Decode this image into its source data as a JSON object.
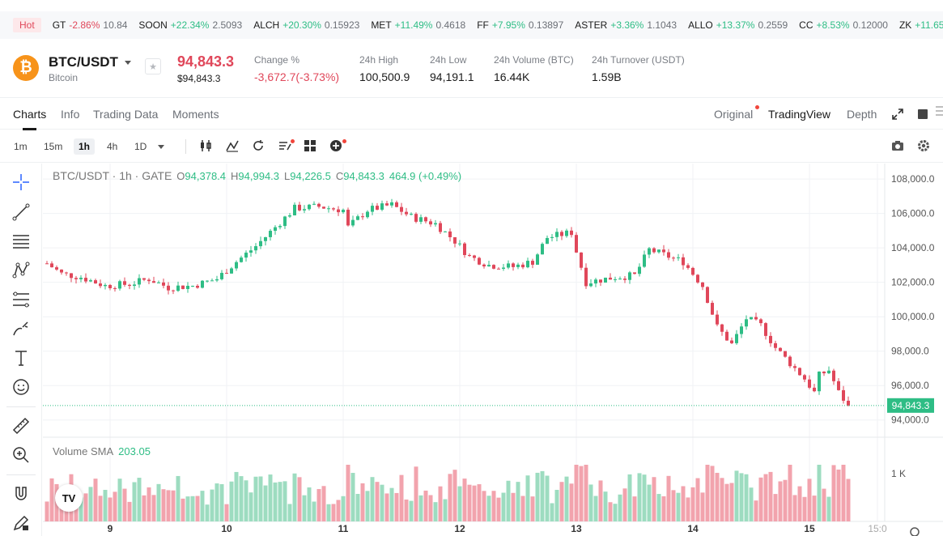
{
  "ticker": {
    "hot_label": "Hot",
    "items": [
      {
        "sym": "GT",
        "pct": "-2.86%",
        "price": "10.84",
        "neg": true
      },
      {
        "sym": "SOON",
        "pct": "+22.34%",
        "price": "2.5093",
        "neg": false
      },
      {
        "sym": "ALCH",
        "pct": "+20.30%",
        "price": "0.15923",
        "neg": false
      },
      {
        "sym": "MET",
        "pct": "+11.49%",
        "price": "0.4618",
        "neg": false
      },
      {
        "sym": "FF",
        "pct": "+7.95%",
        "price": "0.13897",
        "neg": false
      },
      {
        "sym": "ASTER",
        "pct": "+3.36%",
        "price": "1.1043",
        "neg": false
      },
      {
        "sym": "ALLO",
        "pct": "+13.37%",
        "price": "0.2559",
        "neg": false
      },
      {
        "sym": "CC",
        "pct": "+8.53%",
        "price": "0.12000",
        "neg": false
      },
      {
        "sym": "ZK",
        "pct": "+11.65",
        "price": "",
        "neg": false
      }
    ]
  },
  "header": {
    "coin_symbol": "₿",
    "pair": "BTC/USDT",
    "name": "Bitcoin",
    "star": "★",
    "last_price": "94,843.3",
    "last_price_usd": "$94,843.3",
    "stats": [
      {
        "label": "Change %",
        "value": "-3,672.7(-3.73%)",
        "red": true
      },
      {
        "label": "24h High",
        "value": "100,500.9",
        "red": false
      },
      {
        "label": "24h Low",
        "value": "94,191.1",
        "red": false
      },
      {
        "label": "24h Volume (BTC)",
        "value": "16.44K",
        "red": false
      },
      {
        "label": "24h Turnover (USDT)",
        "value": "1.59B",
        "red": false
      }
    ]
  },
  "tabs": {
    "left": [
      "Charts",
      "Info",
      "Trading Data",
      "Moments"
    ],
    "right": [
      "Original",
      "TradingView",
      "Depth"
    ]
  },
  "toolbar": {
    "intervals": [
      "1m",
      "15m",
      "1h",
      "4h",
      "1D"
    ],
    "active_interval": "1h"
  },
  "legend": {
    "title": "BTC/USDT · 1h · GATE",
    "o": "94,378.4",
    "h": "94,994.3",
    "l": "94,226.5",
    "c": "94,843.3",
    "change": "464.9 (+0.49%)",
    "o_label": "O",
    "h_label": "H",
    "l_label": "L",
    "c_label": "C"
  },
  "volume": {
    "label": "Volume SMA",
    "value": "203.05",
    "axis_label": "1 K"
  },
  "tv_logo": "TV",
  "colors": {
    "up": "#2ebd85",
    "down": "#e0475a",
    "up_vol": "#9ddcc0",
    "down_vol": "#f2a3ad",
    "grid": "#f0f2f5"
  },
  "chart_data": {
    "type": "candlestick",
    "title": "BTC/USDT · 1h · GATE",
    "ylim": [
      93000,
      108900
    ],
    "y_ticks": [
      "94,000.0",
      "96,000.0",
      "98,000.0",
      "100,000.0",
      "102,000.0",
      "104,000.0",
      "106,000.0",
      "108,000.0"
    ],
    "y_tick_values": [
      94000,
      96000,
      98000,
      100000,
      102000,
      104000,
      106000,
      108000
    ],
    "x_ticks": [
      "9",
      "10",
      "11",
      "12",
      "13",
      "14",
      "15",
      "15:0"
    ],
    "x_tick_hours": [
      0,
      24,
      48,
      72,
      96,
      120,
      144,
      158
    ],
    "last_price": 94843.3,
    "last_price_label": "94,843.3",
    "close_path": [
      [
        -13,
        103100
      ],
      [
        -10,
        102500
      ],
      [
        -6,
        102300
      ],
      [
        -1,
        101800
      ],
      [
        4,
        101900
      ],
      [
        8,
        102200
      ],
      [
        12,
        101700
      ],
      [
        17,
        101800
      ],
      [
        22,
        102200
      ],
      [
        26,
        103200
      ],
      [
        30,
        104100
      ],
      [
        34,
        105200
      ],
      [
        38,
        106300
      ],
      [
        43,
        106400
      ],
      [
        48,
        106200
      ],
      [
        49,
        105200
      ],
      [
        53,
        106200
      ],
      [
        58,
        106500
      ],
      [
        62,
        105800
      ],
      [
        67,
        105400
      ],
      [
        71,
        104400
      ],
      [
        74,
        103500
      ],
      [
        78,
        103000
      ],
      [
        83,
        102900
      ],
      [
        87,
        103200
      ],
      [
        90,
        104600
      ],
      [
        95,
        104900
      ],
      [
        96,
        103800
      ],
      [
        98,
        102000
      ],
      [
        104,
        102300
      ],
      [
        108,
        102400
      ],
      [
        111,
        103900
      ],
      [
        118,
        103200
      ],
      [
        122,
        101800
      ],
      [
        125,
        99400
      ],
      [
        128,
        98400
      ],
      [
        131,
        99900
      ],
      [
        134,
        99500
      ],
      [
        137,
        98200
      ],
      [
        140,
        97300
      ],
      [
        143,
        96400
      ],
      [
        145,
        95600
      ],
      [
        146,
        96600
      ],
      [
        148,
        96900
      ],
      [
        150,
        95600
      ],
      [
        152,
        94843
      ]
    ]
  }
}
